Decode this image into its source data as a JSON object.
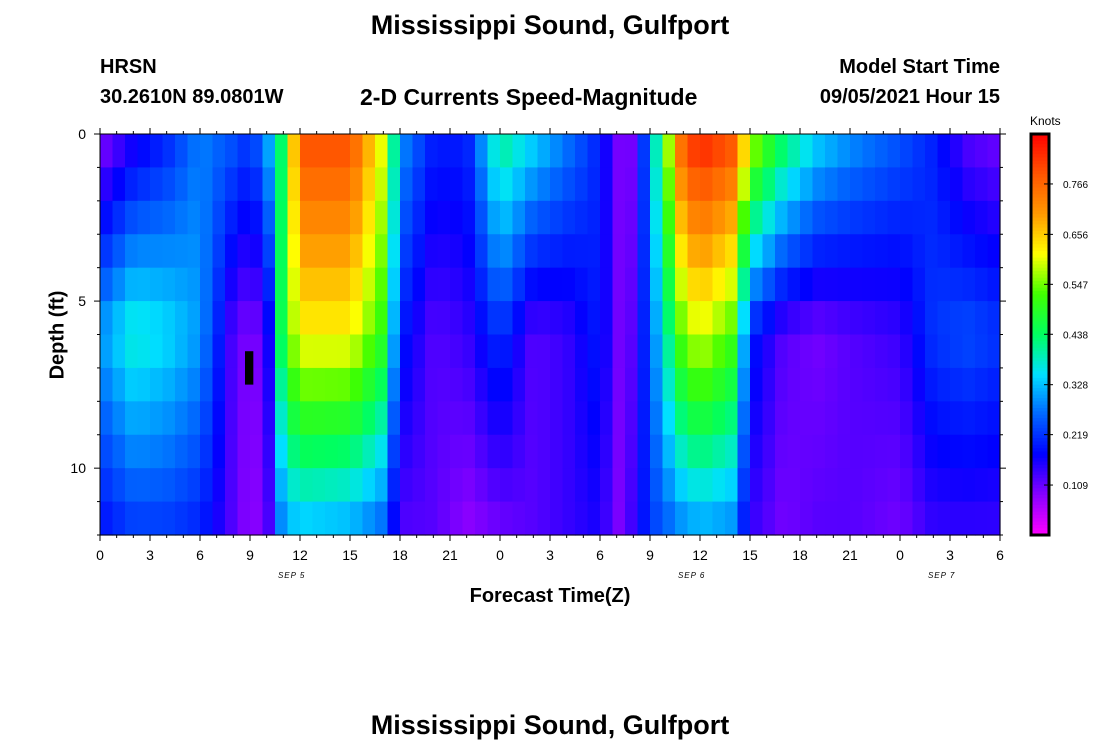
{
  "header": {
    "title": "Mississippi Sound, Gulfport",
    "station": "HRSN",
    "coordinates": "30.2610N  89.0801W",
    "subtitle": "2-D Currents Speed-Magnitude",
    "model_start_label": "Model Start Time",
    "model_start_value": "09/05/2021 Hour 15"
  },
  "footer": {
    "title": "Mississippi Sound, Gulfport"
  },
  "colors": {
    "colormap": [
      "#ff00ff",
      "#8800ff",
      "#0000ff",
      "#0066ff",
      "#00e0ff",
      "#00ff60",
      "#40ff00",
      "#ffff00",
      "#ff9900",
      "#ff5500",
      "#ff0000"
    ]
  },
  "chart_data": {
    "type": "heatmap",
    "xlabel": "Forecast Time(Z)",
    "ylabel": "Depth (ft)",
    "x_tick_labels": [
      "0",
      "3",
      "6",
      "9",
      "12",
      "15",
      "18",
      "21",
      "0",
      "3",
      "6",
      "9",
      "12",
      "15",
      "18",
      "21",
      "0",
      "3",
      "6"
    ],
    "x_range_hours": [
      0,
      54
    ],
    "date_labels": [
      {
        "text": "SEP 5",
        "hour": 11.5
      },
      {
        "text": "SEP 6",
        "hour": 35.5
      },
      {
        "text": "SEP 7",
        "hour": 50.5
      }
    ],
    "y_tick_labels": [
      "0",
      "5",
      "10"
    ],
    "y_ticks": [
      0,
      5,
      10
    ],
    "y_range_ft": [
      0,
      12
    ],
    "colorbar": {
      "unit": "Knots",
      "tick_labels": [
        "0.109",
        "0.219",
        "0.328",
        "0.438",
        "0.547",
        "0.656",
        "0.766"
      ],
      "ticks": [
        0.109,
        0.219,
        0.328,
        0.438,
        0.547,
        0.656,
        0.766
      ],
      "range": [
        0.0,
        0.875
      ]
    },
    "speed_profile_knots": {
      "hours": [
        0,
        2,
        4,
        6,
        8,
        9,
        10,
        11,
        12,
        15,
        17,
        18,
        20,
        22,
        24,
        26,
        28,
        30,
        31,
        32,
        33,
        35,
        36,
        38,
        39,
        41,
        43,
        45,
        48,
        50,
        52,
        54
      ],
      "surface": [
        0.08,
        0.15,
        0.2,
        0.28,
        0.25,
        0.22,
        0.3,
        0.45,
        0.8,
        0.8,
        0.6,
        0.3,
        0.2,
        0.2,
        0.42,
        0.35,
        0.28,
        0.2,
        0.1,
        0.1,
        0.3,
        0.8,
        0.85,
        0.8,
        0.6,
        0.45,
        0.35,
        0.3,
        0.25,
        0.2,
        0.12,
        0.1
      ],
      "mid": [
        0.3,
        0.38,
        0.35,
        0.3,
        0.12,
        0.09,
        0.12,
        0.5,
        0.62,
        0.62,
        0.5,
        0.2,
        0.12,
        0.14,
        0.22,
        0.12,
        0.14,
        0.2,
        0.1,
        0.12,
        0.25,
        0.55,
        0.6,
        0.52,
        0.2,
        0.12,
        0.1,
        0.12,
        0.14,
        0.22,
        0.24,
        0.22
      ],
      "bottom": [
        0.18,
        0.22,
        0.22,
        0.2,
        0.12,
        0.08,
        0.1,
        0.3,
        0.32,
        0.3,
        0.25,
        0.12,
        0.12,
        0.08,
        0.1,
        0.12,
        0.14,
        0.16,
        0.09,
        0.14,
        0.22,
        0.28,
        0.3,
        0.28,
        0.14,
        0.1,
        0.12,
        0.12,
        0.1,
        0.14,
        0.14,
        0.14
      ]
    },
    "masked_cell": {
      "hour_start": 8.7,
      "hour_end": 9.2,
      "depth_top": 6.5,
      "depth_bottom": 7.5
    }
  }
}
